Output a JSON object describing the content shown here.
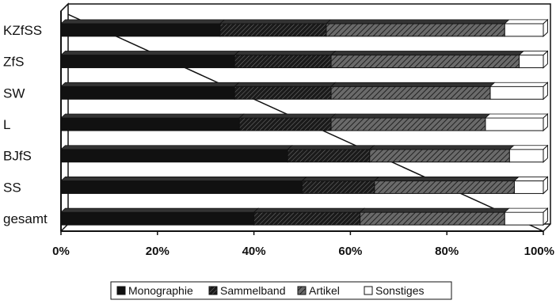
{
  "chart_data": {
    "type": "bar",
    "orientation": "horizontal",
    "stacked": "percent",
    "title": "",
    "xlabel": "",
    "ylabel": "",
    "categories": [
      "KZfSS",
      "ZfS",
      "SW",
      "L",
      "BJfS",
      "SS",
      "gesamt"
    ],
    "xlim": [
      0,
      100
    ],
    "x_ticks": [
      "0%",
      "20%",
      "40%",
      "60%",
      "80%",
      "100%"
    ],
    "grid": false,
    "legend_position": "bottom",
    "series": [
      {
        "name": "Monographie",
        "values": [
          33,
          36,
          36,
          37,
          47,
          50,
          40
        ],
        "color": "#111111",
        "pattern": "solid"
      },
      {
        "name": "Sammelband",
        "values": [
          22,
          20,
          20,
          19,
          17,
          15,
          22
        ],
        "color": "#2a2a2a",
        "pattern": "dense-hatch"
      },
      {
        "name": "Artikel",
        "values": [
          37,
          39,
          33,
          32,
          29,
          29,
          30
        ],
        "color": "#555555",
        "pattern": "diagonal-hatch"
      },
      {
        "name": "Sonstiges",
        "values": [
          8,
          5,
          11,
          12,
          7,
          6,
          8
        ],
        "color": "#ffffff",
        "pattern": "empty"
      }
    ]
  }
}
